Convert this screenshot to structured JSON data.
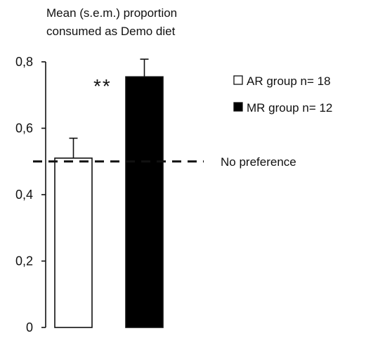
{
  "chart_data": {
    "type": "bar",
    "ylabel_lines": [
      "Mean (s.e.m.) proportion",
      "consumed as Demo diet"
    ],
    "xlabel": "",
    "ylim": [
      0,
      0.8
    ],
    "yticks": [
      {
        "value": 0,
        "label": "0"
      },
      {
        "value": 0.2,
        "label": "0,2"
      },
      {
        "value": 0.4,
        "label": "0,4"
      },
      {
        "value": 0.6,
        "label": "0,6"
      },
      {
        "value": 0.8,
        "label": "0,8"
      }
    ],
    "series": [
      {
        "name": "AR group n= 18",
        "value": 0.51,
        "sem": 0.06,
        "fill": "#ffffff"
      },
      {
        "name": "MR group n= 12",
        "value": 0.755,
        "sem": 0.053,
        "fill": "#000000"
      }
    ],
    "reference_line": {
      "value": 0.5,
      "label": "No preference",
      "style": "dashed"
    },
    "significance_label": "**",
    "legend_position": "right",
    "grid": false
  }
}
